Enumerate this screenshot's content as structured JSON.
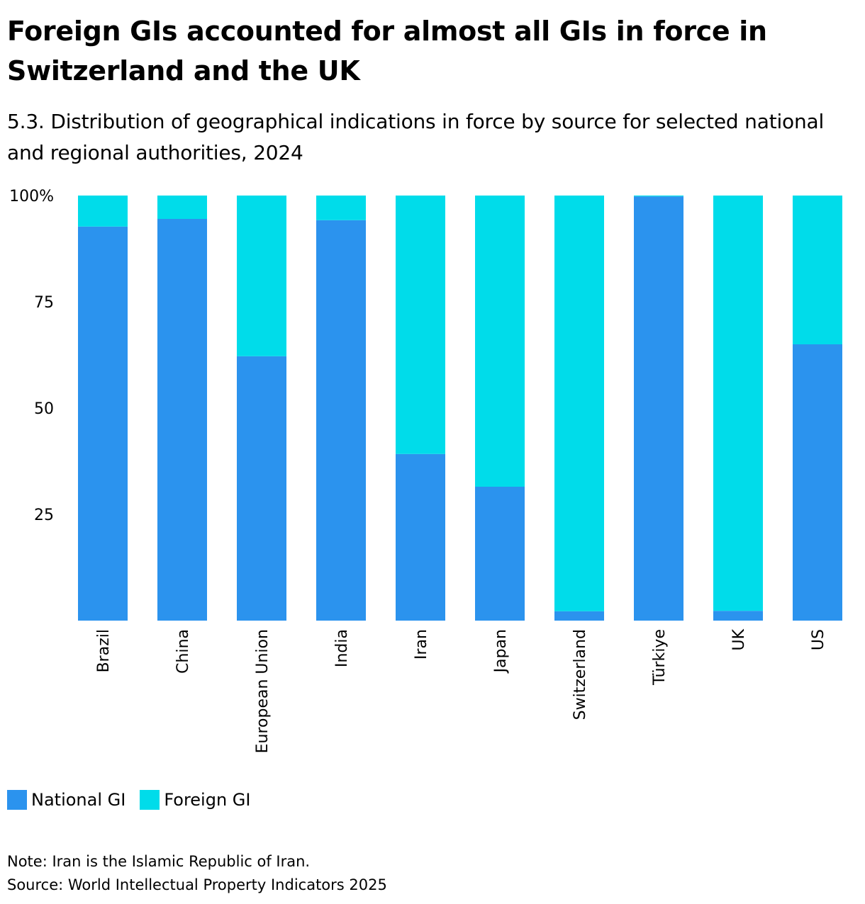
{
  "header": {
    "title": "Foreign GIs accounted for almost all GIs in force in Switzerland and the UK",
    "subtitle": "5.3. Distribution of geographical indications in force by source for selected national and regional authorities, 2024"
  },
  "legend": {
    "national_label": "National GI",
    "foreign_label": "Foreign GI",
    "national_color": "#2B93EE",
    "foreign_color": "#00DCEA"
  },
  "footer": {
    "note": "Note: Iran is the Islamic Republic of Iran.",
    "source": "Source: World Intellectual Property Indicators 2025"
  },
  "chart_data": {
    "type": "bar",
    "stacked": true,
    "categories": [
      "Brazil",
      "China",
      "European Union",
      "India",
      "Iran",
      "Japan",
      "Switzerland",
      "Türkiye",
      "UK",
      "US"
    ],
    "series": [
      {
        "name": "National GI",
        "color": "#2B93EE",
        "values": [
          92.7,
          94.5,
          62.2,
          94.2,
          39.2,
          31.5,
          2.2,
          99.8,
          2.3,
          65.0
        ]
      },
      {
        "name": "Foreign GI",
        "color": "#00DCEA",
        "values": [
          7.3,
          5.5,
          37.8,
          5.8,
          60.8,
          68.5,
          97.8,
          0.2,
          97.7,
          35.0
        ]
      }
    ],
    "ylim": [
      0,
      100
    ],
    "yticks": [
      25,
      50,
      75,
      100
    ],
    "ytick_labels": [
      "25",
      "50",
      "75",
      "100%"
    ],
    "grid": false,
    "legend_position": "bottom-left"
  }
}
